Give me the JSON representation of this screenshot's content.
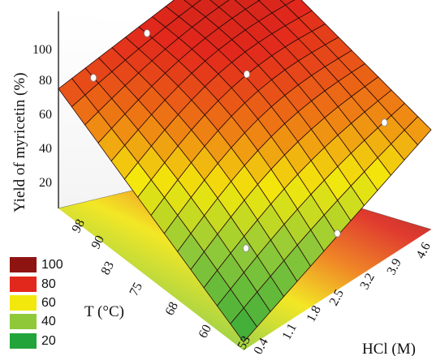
{
  "chart_data": {
    "type": "surface3d",
    "title": "",
    "zlabel": "Yield of myricetin (%)",
    "xlabel": "HCl (M)",
    "ylabel": "T (°C)",
    "z_ticks": [
      "20",
      "40",
      "60",
      "80",
      "100"
    ],
    "x_ticks": [
      "0.4",
      "1.1",
      "1.8",
      "2.5",
      "3.2",
      "3.9",
      "4.6"
    ],
    "y_ticks": [
      "53",
      "60",
      "68",
      "75",
      "83",
      "90",
      "98"
    ],
    "zlim": [
      0,
      100
    ],
    "xlim": [
      0.4,
      4.6
    ],
    "ylim": [
      53,
      98
    ],
    "colormap": {
      "legend": [
        {
          "label": "100",
          "color": "#8e1412"
        },
        {
          "label": "80",
          "color": "#e2281c"
        },
        {
          "label": "60",
          "color": "#f3e80c"
        },
        {
          "label": "40",
          "color": "#8fc93a"
        },
        {
          "label": "20",
          "color": "#22a43a"
        }
      ]
    },
    "surface_grid": {
      "hcl": [
        0.4,
        4.6
      ],
      "temperature": [
        53,
        98
      ],
      "yield_corners": {
        "hcl_0.4_T_53": 5,
        "hcl_0.4_T_98": 72,
        "hcl_4.6_T_53": 60,
        "hcl_4.6_T_98": 86
      }
    },
    "experimental_points": [
      {
        "hcl": 1.0,
        "temperature": 96,
        "yield": 72
      },
      {
        "hcl": 2.2,
        "temperature": 96,
        "yield": 78
      },
      {
        "hcl": 3.9,
        "temperature": 96,
        "yield": 98
      },
      {
        "hcl": 2.5,
        "temperature": 75,
        "yield": 88
      },
      {
        "hcl": 4.2,
        "temperature": 60,
        "yield": 58
      },
      {
        "hcl": 1.1,
        "temperature": 60,
        "yield": 36
      },
      {
        "hcl": 2.5,
        "temperature": 53,
        "yield": 34
      }
    ]
  }
}
